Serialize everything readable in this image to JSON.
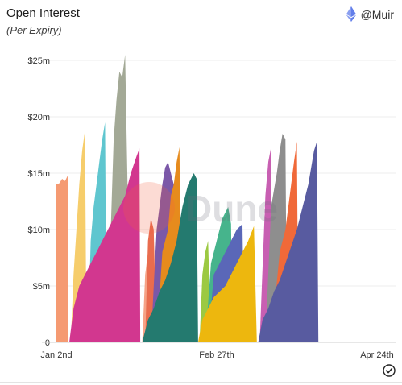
{
  "card": {
    "title": "Open Interest",
    "subtitle": "(Per Expiry)",
    "author": "@Muir",
    "author_icon": "ethereum-icon",
    "footer_icon": "check-circle-icon",
    "watermark": "Dune"
  },
  "chart_data": {
    "type": "area",
    "title": "Open Interest",
    "subtitle": "(Per Expiry)",
    "xlabel": "",
    "ylabel": "",
    "y_ticks": [
      "0",
      "$5m",
      "$10m",
      "$15m",
      "$20m",
      "$25m"
    ],
    "y_tick_values": [
      0,
      5,
      10,
      15,
      20,
      25
    ],
    "ylim": [
      0,
      25
    ],
    "x_tick_labels": [
      "Jan 2nd",
      "Feb 27th",
      "Apr 24th"
    ],
    "x_tick_days": [
      0,
      56,
      112
    ],
    "xlim": [
      0,
      112
    ],
    "grid": true,
    "legend": "none",
    "y_unit": "$m",
    "series": [
      {
        "color": "#F59A72",
        "points": [
          [
            0,
            14
          ],
          [
            1,
            14.1
          ],
          [
            2,
            14.5
          ],
          [
            3,
            14.3
          ],
          [
            4,
            14.8
          ],
          [
            4.2,
            0
          ]
        ]
      },
      {
        "color": "#F6CD6B",
        "points": [
          [
            5,
            0
          ],
          [
            6,
            6
          ],
          [
            7,
            10
          ],
          [
            8,
            14
          ],
          [
            9,
            17
          ],
          [
            10,
            18.8
          ],
          [
            10.5,
            0
          ]
        ]
      },
      {
        "color": "#5FC6CF",
        "points": [
          [
            11,
            0
          ],
          [
            12,
            9
          ],
          [
            13,
            12
          ],
          [
            14,
            14
          ],
          [
            15,
            16
          ],
          [
            16,
            18
          ],
          [
            17,
            19.5
          ],
          [
            17.5,
            0
          ]
        ]
      },
      {
        "color": "#A3A996",
        "points": [
          [
            18,
            0
          ],
          [
            19,
            10
          ],
          [
            20,
            18
          ],
          [
            21,
            21.5
          ],
          [
            22,
            24
          ],
          [
            23,
            23.5
          ],
          [
            24,
            25.5
          ],
          [
            25,
            12
          ],
          [
            25.5,
            0
          ]
        ]
      },
      {
        "color": "#D2378F",
        "points": [
          [
            4.5,
            0
          ],
          [
            6,
            3
          ],
          [
            8,
            5
          ],
          [
            10,
            6
          ],
          [
            12,
            7
          ],
          [
            14,
            8
          ],
          [
            16,
            9
          ],
          [
            18,
            10
          ],
          [
            20,
            11
          ],
          [
            22,
            12
          ],
          [
            24,
            13
          ],
          [
            26,
            15
          ],
          [
            28,
            16.5
          ],
          [
            29,
            17.2
          ],
          [
            29.3,
            0
          ]
        ]
      },
      {
        "color": "#F5A286",
        "points": [
          [
            30,
            0
          ],
          [
            31,
            6
          ],
          [
            32,
            8
          ],
          [
            33,
            0
          ]
        ]
      },
      {
        "color": "#E96C4E",
        "points": [
          [
            31,
            0
          ],
          [
            32,
            9
          ],
          [
            33,
            11
          ],
          [
            34,
            10
          ],
          [
            35,
            0
          ]
        ]
      },
      {
        "color": "#7B58A8",
        "points": [
          [
            33,
            0
          ],
          [
            35,
            10
          ],
          [
            37,
            14
          ],
          [
            38,
            15.5
          ],
          [
            39,
            16
          ],
          [
            40,
            15
          ],
          [
            41,
            14
          ],
          [
            41.5,
            0
          ]
        ]
      },
      {
        "color": "#E68B1D",
        "points": [
          [
            35,
            0
          ],
          [
            37,
            8
          ],
          [
            39,
            10
          ],
          [
            40,
            13
          ],
          [
            41,
            14
          ],
          [
            42,
            16
          ],
          [
            43,
            17.3
          ],
          [
            43.5,
            0
          ]
        ]
      },
      {
        "color": "#247A6F",
        "points": [
          [
            30,
            0
          ],
          [
            32,
            2
          ],
          [
            34,
            3
          ],
          [
            36,
            4.5
          ],
          [
            38,
            5.5
          ],
          [
            40,
            7
          ],
          [
            42,
            9
          ],
          [
            44,
            12
          ],
          [
            46,
            14
          ],
          [
            48,
            15
          ],
          [
            49,
            14.5
          ],
          [
            49.5,
            0
          ]
        ]
      },
      {
        "color": "#9CC942",
        "points": [
          [
            50,
            0
          ],
          [
            51,
            6
          ],
          [
            52,
            8
          ],
          [
            53,
            9
          ],
          [
            54,
            0
          ]
        ]
      },
      {
        "color": "#46B48C",
        "points": [
          [
            52,
            0
          ],
          [
            54,
            7
          ],
          [
            56,
            9
          ],
          [
            58,
            11
          ],
          [
            60,
            12
          ],
          [
            61,
            10.5
          ],
          [
            61.5,
            0
          ]
        ]
      },
      {
        "color": "#5A67B8",
        "points": [
          [
            53,
            0
          ],
          [
            55,
            6
          ],
          [
            57,
            7
          ],
          [
            59,
            8
          ],
          [
            61,
            9
          ],
          [
            63,
            10
          ],
          [
            65,
            10.5
          ],
          [
            65.5,
            0
          ]
        ]
      },
      {
        "color": "#EDB70E",
        "points": [
          [
            49.5,
            0
          ],
          [
            51,
            2
          ],
          [
            53,
            3
          ],
          [
            55,
            4
          ],
          [
            57,
            4.5
          ],
          [
            59,
            5
          ],
          [
            61,
            6
          ],
          [
            63,
            7
          ],
          [
            65,
            8
          ],
          [
            67,
            9
          ],
          [
            69,
            10.3
          ],
          [
            70,
            0
          ]
        ]
      },
      {
        "color": "#C85FB2",
        "points": [
          [
            71,
            0
          ],
          [
            73,
            13
          ],
          [
            74,
            16
          ],
          [
            75,
            17.3
          ],
          [
            75.5,
            0
          ]
        ]
      },
      {
        "color": "#8E8E8E",
        "points": [
          [
            73,
            0
          ],
          [
            75,
            12
          ],
          [
            77,
            15
          ],
          [
            78,
            17
          ],
          [
            79,
            18.5
          ],
          [
            80,
            18
          ],
          [
            80.5,
            0
          ]
        ]
      },
      {
        "color": "#F06939",
        "points": [
          [
            75,
            0
          ],
          [
            78,
            8
          ],
          [
            80,
            10
          ],
          [
            82,
            14
          ],
          [
            83,
            16
          ],
          [
            84,
            17.8
          ],
          [
            84.5,
            0
          ]
        ]
      },
      {
        "color": "#585BA0",
        "points": [
          [
            70.5,
            0
          ],
          [
            72,
            2
          ],
          [
            74,
            3
          ],
          [
            76,
            4.5
          ],
          [
            78,
            5.5
          ],
          [
            80,
            7
          ],
          [
            82,
            8.5
          ],
          [
            84,
            10
          ],
          [
            86,
            12
          ],
          [
            88,
            14
          ],
          [
            90,
            17
          ],
          [
            91,
            17.8
          ],
          [
            91.5,
            0
          ]
        ]
      }
    ]
  }
}
